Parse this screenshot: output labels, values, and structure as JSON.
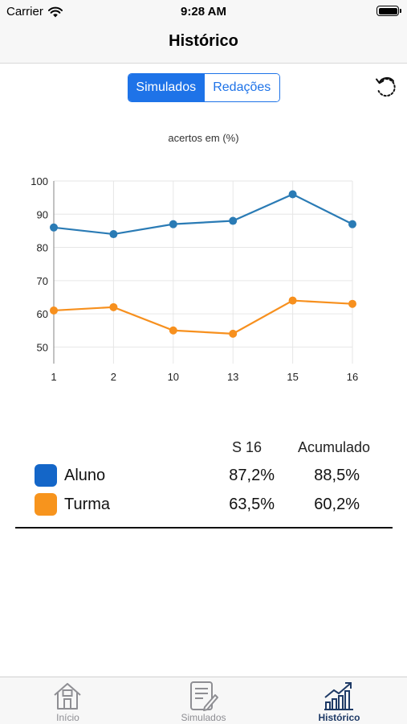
{
  "status_bar": {
    "carrier": "Carrier",
    "time": "9:28 AM"
  },
  "nav": {
    "title": "Histórico"
  },
  "segments": {
    "active": "Simulados",
    "inactive": "Redações"
  },
  "chart_caption": "acertos em (%)",
  "chart_data": {
    "type": "line",
    "title": "acertos em (%)",
    "categories": [
      "1",
      "2",
      "10",
      "13",
      "15",
      "16"
    ],
    "y_ticks": [
      50,
      60,
      70,
      80,
      90,
      100
    ],
    "ylim": [
      45,
      100
    ],
    "grid": true,
    "series": [
      {
        "color": "#2a7bb5",
        "values": [
          86,
          84,
          87,
          88,
          96,
          87
        ]
      },
      {
        "color": "#f7901e",
        "values": [
          61,
          62,
          55,
          54,
          64,
          63
        ]
      }
    ]
  },
  "summary": {
    "col_current": "S 16",
    "col_total": "Acumulado",
    "rows": [
      {
        "label": "Aluno",
        "color": "#1466c8",
        "current": "87,2%",
        "total": "88,5%"
      },
      {
        "label": "Turma",
        "color": "#f7941d",
        "current": "63,5%",
        "total": "60,2%"
      }
    ]
  },
  "tabs": [
    {
      "label": "Início",
      "icon": "home-icon"
    },
    {
      "label": "Simulados",
      "icon": "document-edit-icon"
    },
    {
      "label": "Histórico",
      "icon": "chart-growth-icon",
      "active": true
    }
  ]
}
